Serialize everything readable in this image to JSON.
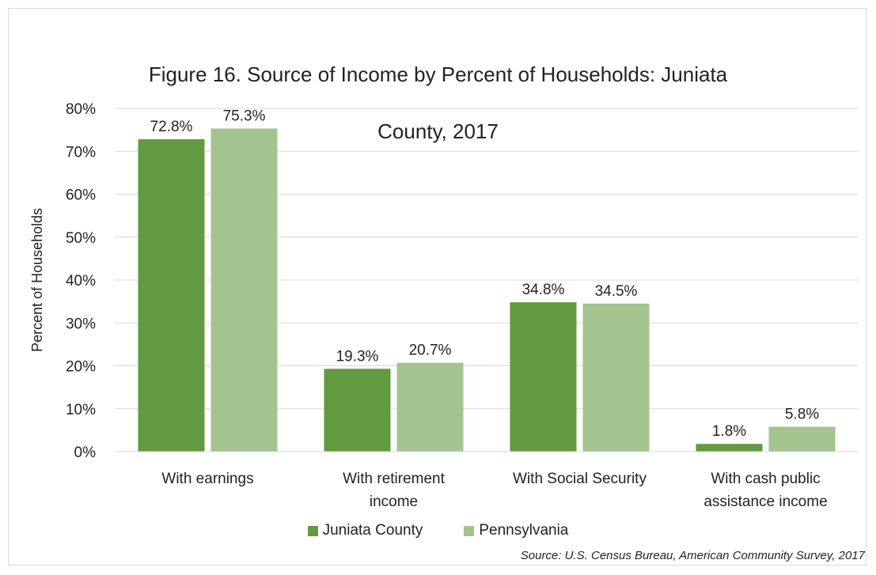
{
  "title": {
    "line1": "Figure 16. Source of Income by Percent of Households: Juniata",
    "line2": "County, 2017"
  },
  "source": "Source: U.S. Census Bureau, American Community Survey, 2017",
  "colors": {
    "juniata": "#629a3f",
    "pennsylvania": "#a3c48f",
    "grid": "#d9d9d9"
  },
  "chart_data": {
    "type": "bar",
    "title": "Figure 16. Source of Income by Percent of Households: Juniata County, 2017",
    "xlabel": "",
    "ylabel": "Percent of Households",
    "ylim": [
      0,
      80
    ],
    "y_ticks": [
      0,
      10,
      20,
      30,
      40,
      50,
      60,
      70,
      80
    ],
    "y_tick_labels": [
      "0%",
      "10%",
      "20%",
      "30%",
      "40%",
      "50%",
      "60%",
      "70%",
      "80%"
    ],
    "grid": true,
    "legend_position": "bottom",
    "categories": [
      [
        "With earnings"
      ],
      [
        "With retirement",
        "income"
      ],
      [
        "With Social Security"
      ],
      [
        "With cash public",
        "assistance income"
      ]
    ],
    "series": [
      {
        "name": "Juniata County",
        "values": [
          72.8,
          19.3,
          34.8,
          1.8
        ],
        "labels": [
          "72.8%",
          "19.3%",
          "34.8%",
          "1.8%"
        ]
      },
      {
        "name": "Pennsylvania",
        "values": [
          75.3,
          20.7,
          34.5,
          5.8
        ],
        "labels": [
          "75.3%",
          "20.7%",
          "34.5%",
          "5.8%"
        ]
      }
    ]
  }
}
